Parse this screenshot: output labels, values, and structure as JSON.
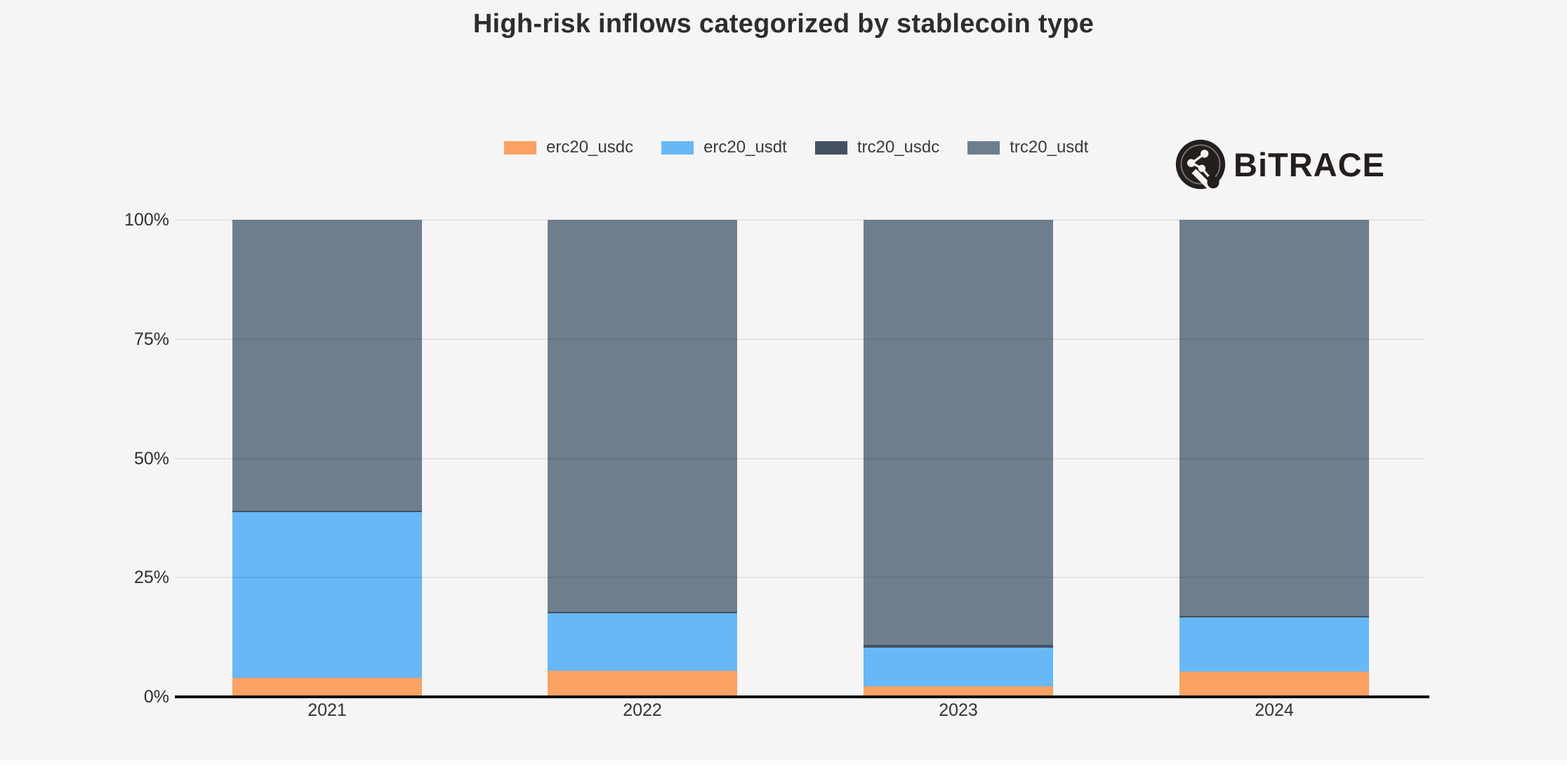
{
  "title": "High-risk inflows categorized by stablecoin type",
  "brand": {
    "name": "BiTRACE"
  },
  "colors": {
    "background": "#F5F5F5",
    "erc20_usdc": "#F9A262",
    "erc20_usdt": "#68B8F7",
    "trc20_usdc": "#425262",
    "trc20_usdt": "#6F7E8D",
    "axis": "#101010",
    "gridline": "rgba(0,0,0,0.07)",
    "logo": "#241E1C"
  },
  "chart_data": {
    "type": "bar",
    "stacked": true,
    "unit": "%",
    "categories": [
      "2021",
      "2022",
      "2023",
      "2024"
    ],
    "series": [
      {
        "name": "erc20_usdc",
        "color": "#F9A262",
        "values": [
          4.0,
          5.4,
          2.2,
          5.3
        ]
      },
      {
        "name": "erc20_usdt",
        "color": "#68B8F7",
        "values": [
          34.7,
          12.1,
          8.1,
          11.3
        ]
      },
      {
        "name": "trc20_usdc",
        "color": "#425262",
        "values": [
          0.3,
          0.3,
          0.6,
          0.3
        ]
      },
      {
        "name": "trc20_usdt",
        "color": "#6F7E8D",
        "values": [
          61.0,
          82.2,
          89.1,
          83.1
        ]
      }
    ],
    "title": "High-risk inflows categorized by stablecoin type",
    "xlabel": "",
    "ylabel": "",
    "ylim": [
      0,
      100
    ],
    "y_ticks": [
      {
        "value": 0,
        "label": "0%"
      },
      {
        "value": 25,
        "label": "25%"
      },
      {
        "value": 50,
        "label": "50%"
      },
      {
        "value": 75,
        "label": "75%"
      },
      {
        "value": 100,
        "label": "100%"
      }
    ],
    "legend_position": "top",
    "grid": true
  }
}
